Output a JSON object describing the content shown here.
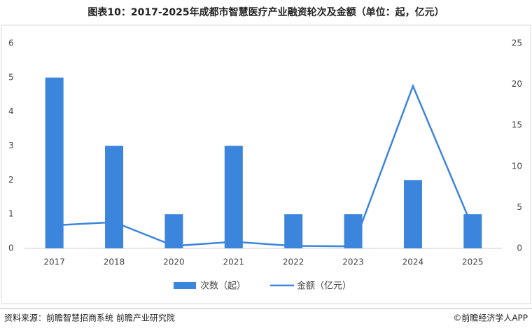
{
  "chart_data": {
    "type": "bar",
    "title": "图表10：2017-2025年成都市智慧医疗产业融资轮次及金额（单位：起，亿元）",
    "categories": [
      "2017",
      "2018",
      "2020",
      "2021",
      "2022",
      "2023",
      "2024",
      "2025"
    ],
    "series": [
      {
        "name": "次数（起）",
        "type": "bar",
        "color": "#3c85dc",
        "values": [
          5,
          3,
          1,
          3,
          1,
          1,
          2,
          1
        ]
      },
      {
        "name": "金额（亿元）",
        "type": "line",
        "axis": "y2",
        "color": "#3c85dc",
        "values": [
          2.8,
          3.2,
          0.3,
          0.8,
          0.3,
          0.25,
          19.8,
          2.5
        ]
      }
    ],
    "ylim": [
      0,
      6
    ],
    "yticks": [
      0,
      1,
      2,
      3,
      4,
      5,
      6
    ],
    "y2lim": [
      0,
      25
    ],
    "y2ticks": [
      0,
      5,
      10,
      15,
      20,
      25
    ],
    "legend": "bottom",
    "source": "资料来源：前瞻智慧招商系统  前瞻产业研究院",
    "credit": "©前瞻经济学人APP"
  }
}
